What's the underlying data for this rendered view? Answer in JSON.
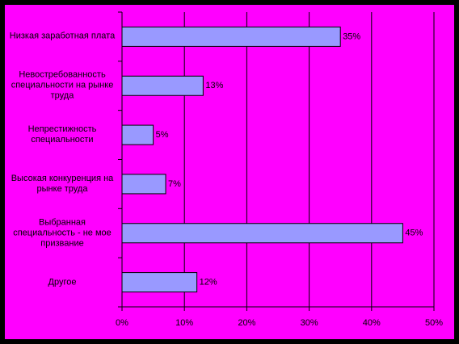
{
  "chart_data": {
    "type": "bar",
    "categories": [
      "Низкая заработная плата",
      "Невостребованность специальности на рынке труда",
      "Непрестижность специальности",
      "Высокая конкуренция на рынке труда",
      "Выбранная специальность - не мое призвание",
      "Другое"
    ],
    "values": [
      35,
      13,
      5,
      7,
      45,
      12
    ],
    "value_labels": [
      "35%",
      "13%",
      "5%",
      "7%",
      "45%",
      "12%"
    ],
    "color": "#9999ff",
    "background": "#ff00ff",
    "xlim": [
      0,
      50
    ],
    "xticks": [
      {
        "value": 0,
        "label": "0%"
      },
      {
        "value": 10,
        "label": "10%"
      },
      {
        "value": 20,
        "label": "20%"
      },
      {
        "value": 30,
        "label": "30%"
      },
      {
        "value": 40,
        "label": "40%"
      },
      {
        "value": 50,
        "label": "50%"
      }
    ],
    "grid": true
  }
}
